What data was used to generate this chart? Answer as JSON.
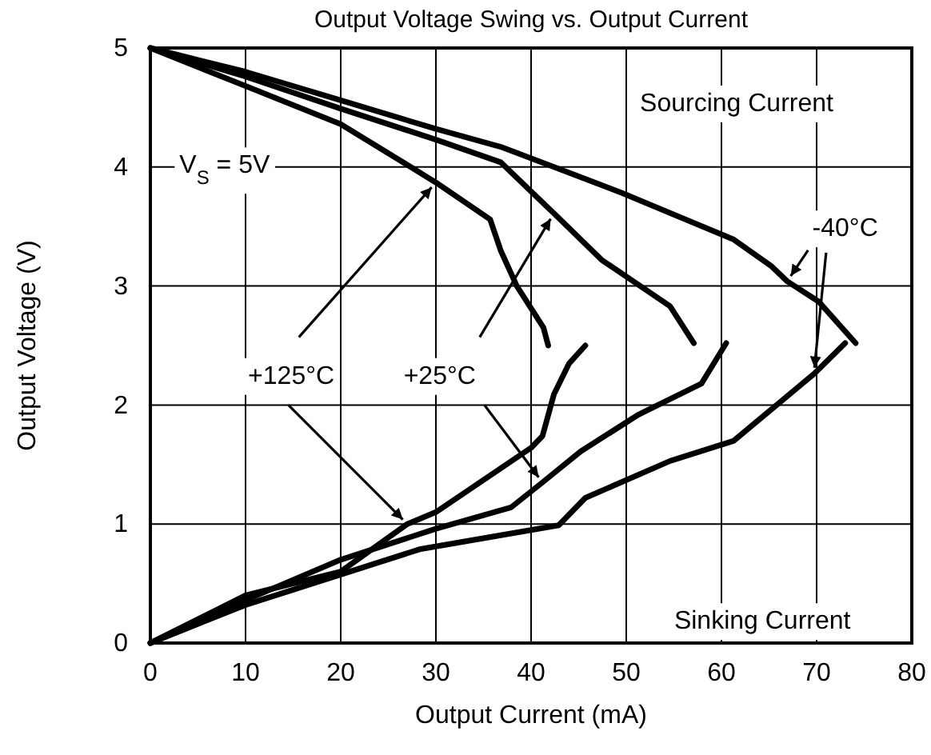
{
  "chart_data": {
    "type": "line",
    "title": "Output Voltage Swing vs. Output Current",
    "xlabel": "Output Current (mA)",
    "ylabel": "Output Voltage (V)",
    "xlim": [
      0,
      80
    ],
    "xticks": [
      0,
      10,
      20,
      30,
      40,
      50,
      60,
      70,
      80
    ],
    "ylim": [
      0,
      5
    ],
    "yticks": [
      0,
      1,
      2,
      3,
      4,
      5
    ],
    "grid": true,
    "line_style": "solid",
    "marker": "none",
    "annotations": [
      "Sourcing Current",
      "Sinking Current",
      "V$_{S}$ = 5V",
      {
        "text": "+125°C",
        "x": 30,
        "y": 3.87
      },
      {
        "text": "+25°C",
        "x": 42.4,
        "y": 3.61
      },
      {
        "text": "-40°C",
        "x": 66.9,
        "y": 3.04
      }
    ],
    "series": [
      {
        "color": "#000000",
        "x": [
          0,
          10,
          20,
          30,
          35.7,
          36.8,
          38.5,
          41.3,
          41.8
        ],
        "values": [
          5,
          4.68,
          4.36,
          3.87,
          3.56,
          3.3,
          3.0,
          2.65,
          2.5
        ]
      },
      {
        "color": "#000000",
        "x": [
          0,
          10,
          20,
          27,
          30,
          40,
          41.2,
          42.4,
          44,
          45.7
        ],
        "values": [
          0,
          0.4,
          0.6,
          1.0,
          1.1,
          1.64,
          1.74,
          2.09,
          2.35,
          2.5
        ]
      },
      {
        "color": "#000000",
        "x": [
          0,
          10,
          20,
          30,
          36.8,
          42.4,
          47.4,
          54.6,
          57.1
        ],
        "values": [
          5,
          4.76,
          4.49,
          4.23,
          4.04,
          3.61,
          3.22,
          2.83,
          2.52
        ]
      },
      {
        "color": "#000000",
        "x": [
          0,
          10,
          20,
          30,
          37.9,
          41.2,
          45.2,
          51.3,
          57.9,
          60.5
        ],
        "values": [
          0,
          0.36,
          0.7,
          0.96,
          1.14,
          1.35,
          1.61,
          1.92,
          2.18,
          2.52
        ]
      },
      {
        "color": "#000000",
        "x": [
          0,
          10,
          20,
          30,
          36.8,
          42.4,
          49.6,
          61.3,
          65.2,
          66.9,
          70.2,
          74.1
        ],
        "values": [
          5,
          4.8,
          4.56,
          4.32,
          4.17,
          4.0,
          3.78,
          3.39,
          3.17,
          3.04,
          2.87,
          2.52
        ]
      },
      {
        "color": "#000000",
        "x": [
          0,
          10,
          28.4,
          42.9,
          45.7,
          54.6,
          61.3,
          64.6,
          69.7,
          73
        ],
        "values": [
          0,
          0.32,
          0.79,
          0.99,
          1.22,
          1.53,
          1.7,
          1.92,
          2.26,
          2.52
        ]
      }
    ]
  }
}
